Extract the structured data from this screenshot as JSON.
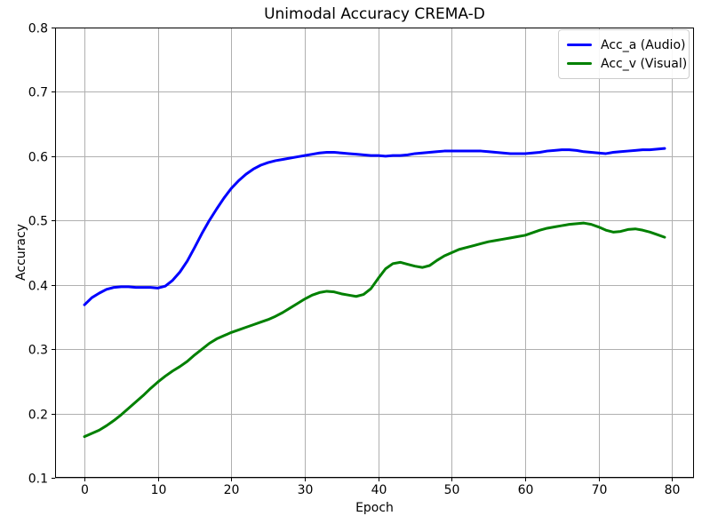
{
  "chart_data": {
    "type": "line",
    "title": "Unimodal Accuracy CREMA-D",
    "xlabel": "Epoch",
    "ylabel": "Accuracy",
    "xlim": [
      -4,
      83
    ],
    "ylim": [
      0.1,
      0.8
    ],
    "xticks": [
      0,
      10,
      20,
      30,
      40,
      50,
      60,
      70,
      80
    ],
    "yticks": [
      0.1,
      0.2,
      0.3,
      0.4,
      0.5,
      0.6,
      0.7,
      0.8
    ],
    "grid": true,
    "grid_color": "#b0b0b0",
    "spine_color": "#000000",
    "background": "#ffffff",
    "legend": {
      "position": "upper right",
      "edge_color": "#cccccc",
      "entries": [
        "Acc_a (Audio)",
        "Acc_v (Visual)"
      ]
    },
    "x": [
      0,
      1,
      2,
      3,
      4,
      5,
      6,
      7,
      8,
      9,
      10,
      11,
      12,
      13,
      14,
      15,
      16,
      17,
      18,
      19,
      20,
      21,
      22,
      23,
      24,
      25,
      26,
      27,
      28,
      29,
      30,
      31,
      32,
      33,
      34,
      35,
      36,
      37,
      38,
      39,
      40,
      41,
      42,
      43,
      44,
      45,
      46,
      47,
      48,
      49,
      50,
      51,
      52,
      53,
      54,
      55,
      56,
      57,
      58,
      59,
      60,
      61,
      62,
      63,
      64,
      65,
      66,
      67,
      68,
      69,
      70,
      71,
      72,
      73,
      74,
      75,
      76,
      77,
      78,
      79
    ],
    "series": [
      {
        "name": "Acc_a (Audio)",
        "color": "#0000ff",
        "linewidth": 3,
        "values": [
          0.369,
          0.38,
          0.387,
          0.393,
          0.396,
          0.397,
          0.397,
          0.396,
          0.396,
          0.396,
          0.395,
          0.398,
          0.407,
          0.42,
          0.437,
          0.458,
          0.48,
          0.5,
          0.518,
          0.535,
          0.55,
          0.562,
          0.572,
          0.58,
          0.586,
          0.59,
          0.593,
          0.595,
          0.597,
          0.599,
          0.601,
          0.603,
          0.605,
          0.606,
          0.606,
          0.605,
          0.604,
          0.603,
          0.602,
          0.601,
          0.601,
          0.6,
          0.601,
          0.601,
          0.602,
          0.604,
          0.605,
          0.606,
          0.607,
          0.608,
          0.608,
          0.608,
          0.608,
          0.608,
          0.608,
          0.607,
          0.606,
          0.605,
          0.604,
          0.604,
          0.604,
          0.605,
          0.606,
          0.608,
          0.609,
          0.61,
          0.61,
          0.609,
          0.607,
          0.606,
          0.605,
          0.604,
          0.606,
          0.607,
          0.608,
          0.609,
          0.61,
          0.61,
          0.611,
          0.612
        ]
      },
      {
        "name": "Acc_v (Visual)",
        "color": "#008000",
        "linewidth": 3,
        "values": [
          0.164,
          0.169,
          0.174,
          0.181,
          0.189,
          0.198,
          0.208,
          0.218,
          0.228,
          0.239,
          0.249,
          0.258,
          0.266,
          0.273,
          0.281,
          0.291,
          0.3,
          0.309,
          0.316,
          0.321,
          0.326,
          0.33,
          0.334,
          0.338,
          0.342,
          0.346,
          0.351,
          0.357,
          0.364,
          0.371,
          0.378,
          0.384,
          0.388,
          0.39,
          0.389,
          0.386,
          0.384,
          0.382,
          0.385,
          0.394,
          0.41,
          0.425,
          0.433,
          0.435,
          0.432,
          0.429,
          0.427,
          0.43,
          0.438,
          0.445,
          0.45,
          0.455,
          0.458,
          0.461,
          0.464,
          0.467,
          0.469,
          0.471,
          0.473,
          0.475,
          0.477,
          0.481,
          0.485,
          0.488,
          0.49,
          0.492,
          0.494,
          0.495,
          0.496,
          0.494,
          0.49,
          0.485,
          0.482,
          0.483,
          0.486,
          0.487,
          0.485,
          0.482,
          0.478,
          0.474
        ]
      }
    ]
  }
}
